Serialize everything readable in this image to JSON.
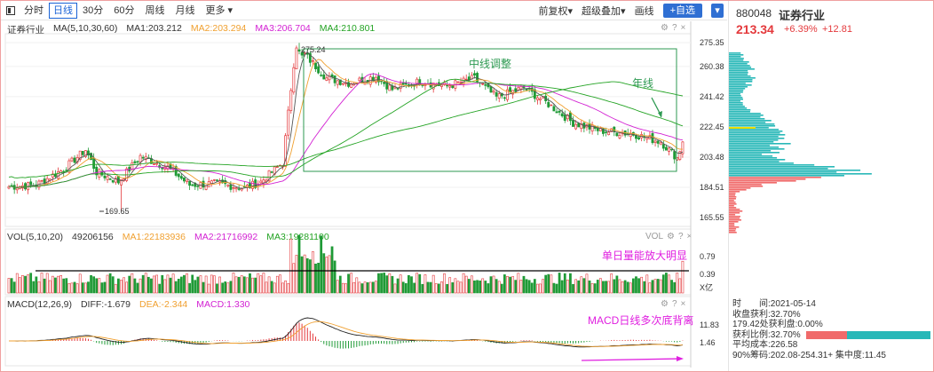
{
  "toolbar": {
    "tabs": [
      "分时",
      "日线",
      "30分",
      "60分",
      "周线",
      "月线",
      "更多 ▾"
    ],
    "active_tab": 1,
    "right": {
      "adjust": "前复权▾",
      "overlay": "超级叠加▾",
      "draw": "画线",
      "add": "+自选",
      "menu": "▾"
    }
  },
  "main_legend": {
    "name": "证券行业",
    "ma_label": "MA(5,10,30,60)",
    "ma1": "MA1:203.212",
    "ma2": "MA2:203.294",
    "ma3": "MA3:206.704",
    "ma4": "MA4:210.801"
  },
  "vol_legend": {
    "label": "VOL(5,10,20)",
    "value": "49206156",
    "ma1": "MA1:22183936",
    "ma2": "MA2:21716992",
    "ma3": "MA3:19281100",
    "tag": "VOL"
  },
  "macd_legend": {
    "label": "MACD(12,26,9)",
    "diff": "DIFF:-1.679",
    "dea": "DEA:-2.344",
    "macd": "MACD:1.330"
  },
  "annotations": {
    "consolidation": "中线调整",
    "year_line": "年线",
    "vol_note": "单日量能放大明显",
    "macd_note": "MACD日线多次底背离",
    "high_label": "275.24",
    "low_label": "169.65"
  },
  "colors": {
    "up": "#e4393c",
    "down": "#1f9a36",
    "ma1": "#555555",
    "ma2": "#f0a030",
    "ma3": "#d322d3",
    "ma4": "#23a323",
    "annot_green": "#2e9a52",
    "annot_pink": "#e020e0",
    "chip_red": "#f06a6a",
    "chip_teal": "#28b8b8"
  },
  "side": {
    "code": "880048",
    "name": "证券行业",
    "price": "213.34",
    "pct": "+6.39%",
    "change": "+12.81",
    "info": [
      "时　　间:2021-05-14",
      "收盘获利:32.70%",
      "179.42处获利盘:0.00%",
      "获利比例:32.70%",
      "平均成本:226.58",
      "90%筹码:202.08-254.31+ 集中度:11.45"
    ]
  },
  "chart_data": {
    "type": "candlestick",
    "y_ticks": [
      "275.35",
      "260.38",
      "241.42",
      "222.45",
      "203.48",
      "184.51",
      "165.55"
    ],
    "ylim": [
      165.55,
      275.35
    ],
    "high": 275.24,
    "low": 169.65,
    "vol_ticks": [
      "0.79",
      "0.39",
      "X亿"
    ],
    "macd_ticks": [
      "11.83",
      "1.46"
    ],
    "segments": [
      [
        0,
        185
      ],
      [
        10,
        186
      ],
      [
        20,
        196
      ],
      [
        28,
        208
      ],
      [
        32,
        194
      ],
      [
        40,
        188
      ],
      [
        48,
        204
      ],
      [
        58,
        197
      ],
      [
        66,
        186
      ],
      [
        76,
        187
      ],
      [
        86,
        184
      ],
      [
        92,
        188
      ],
      [
        100,
        200
      ],
      [
        104,
        262
      ],
      [
        108,
        268
      ],
      [
        116,
        253
      ],
      [
        124,
        250
      ],
      [
        134,
        254
      ],
      [
        140,
        246
      ],
      [
        150,
        251
      ],
      [
        160,
        248
      ],
      [
        170,
        253
      ],
      [
        178,
        241
      ],
      [
        188,
        247
      ],
      [
        196,
        238
      ],
      [
        206,
        225
      ],
      [
        216,
        220
      ],
      [
        228,
        218
      ],
      [
        238,
        213
      ],
      [
        244,
        203
      ],
      [
        246,
        213
      ]
    ]
  }
}
